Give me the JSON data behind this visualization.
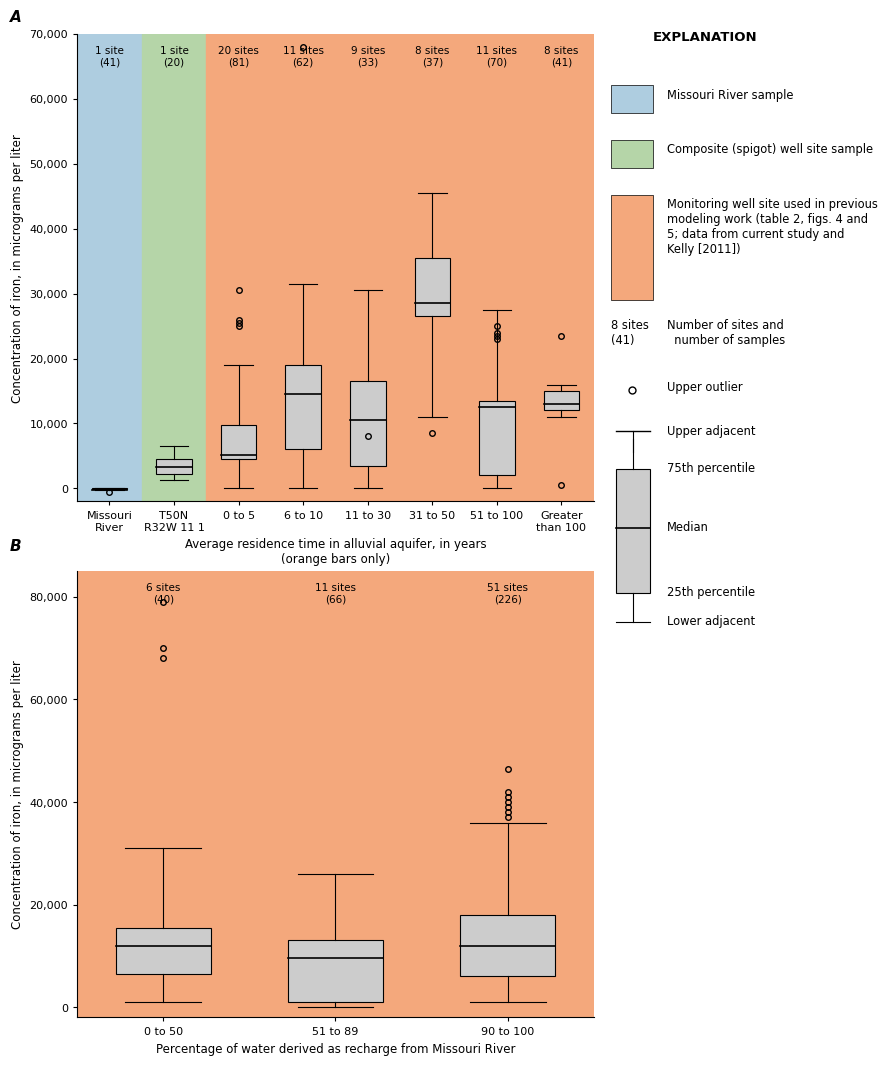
{
  "panel_A": {
    "categories": [
      "Missouri\nRiver",
      "T50N\nR32W 11 1",
      "0 to 5",
      "6 to 10",
      "11 to 30",
      "31 to 50",
      "51 to 100",
      "Greater\nthan 100"
    ],
    "bg_colors": [
      "#aecde0",
      "#b5d5a8",
      "#f4a87c",
      "#f4a87c",
      "#f4a87c",
      "#f4a87c",
      "#f4a87c",
      "#f4a87c"
    ],
    "labels": [
      "1 site\n(41)",
      "1 site\n(20)",
      "20 sites\n(81)",
      "11 sites\n(62)",
      "9 sites\n(33)",
      "8 sites\n(37)",
      "11 sites\n(70)",
      "8 sites\n(41)"
    ],
    "boxes": [
      {
        "q1": -100,
        "median": -200,
        "q3": 100,
        "lower": -200,
        "upper": 100,
        "outliers": [
          -500
        ]
      },
      {
        "q1": 2200,
        "median": 3300,
        "q3": 4500,
        "lower": 1300,
        "upper": 6500,
        "outliers": []
      },
      {
        "q1": 4500,
        "median": 5200,
        "q3": 9800,
        "lower": 0,
        "upper": 19000,
        "outliers": [
          25000,
          25500,
          26000,
          30500
        ]
      },
      {
        "q1": 6000,
        "median": 14500,
        "q3": 19000,
        "lower": 0,
        "upper": 31500,
        "outliers": [
          68000
        ]
      },
      {
        "q1": 3500,
        "median": 10500,
        "q3": 16500,
        "lower": 0,
        "upper": 30500,
        "outliers": [
          8000
        ]
      },
      {
        "q1": 26500,
        "median": 28500,
        "q3": 35500,
        "lower": 11000,
        "upper": 45500,
        "outliers": [
          8500
        ]
      },
      {
        "q1": 2000,
        "median": 12500,
        "q3": 13500,
        "lower": 0,
        "upper": 27500,
        "outliers": [
          23000,
          23500,
          24000,
          25000
        ]
      },
      {
        "q1": 12000,
        "median": 13000,
        "q3": 15000,
        "lower": 11000,
        "upper": 16000,
        "outliers": [
          500,
          23500
        ]
      }
    ],
    "ylim": [
      -2000,
      70000
    ],
    "yticks": [
      0,
      10000,
      20000,
      30000,
      40000,
      50000,
      60000,
      70000
    ],
    "ylabel": "Concentration of iron, in micrograms per liter",
    "xlabel": "Average residence time in alluvial aquifer, in years\n(orange bars only)",
    "title": "A"
  },
  "panel_B": {
    "categories": [
      "0 to 50",
      "51 to 89",
      "90 to 100"
    ],
    "bg_colors": [
      "#f4a87c",
      "#f4a87c",
      "#f4a87c"
    ],
    "bg_gaps": [
      true,
      false,
      true
    ],
    "labels": [
      "6 sites\n(40)",
      "11 sites\n(66)",
      "51 sites\n(226)"
    ],
    "boxes": [
      {
        "q1": 6500,
        "median": 12000,
        "q3": 15500,
        "lower": 1000,
        "upper": 31000,
        "outliers": [
          68000,
          79000,
          70000
        ]
      },
      {
        "q1": 1000,
        "median": 9500,
        "q3": 13000,
        "lower": 0,
        "upper": 26000,
        "outliers": []
      },
      {
        "q1": 6000,
        "median": 12000,
        "q3": 18000,
        "lower": 1000,
        "upper": 36000,
        "outliers": [
          46500,
          39000,
          40000,
          41000,
          42000,
          38000,
          37000
        ]
      }
    ],
    "ylim": [
      -2000,
      85000
    ],
    "yticks": [
      0,
      20000,
      40000,
      60000,
      80000
    ],
    "xlabel": "Percentage of water derived as recharge from Missouri River",
    "title": "B"
  },
  "legend": {
    "blue_color": "#aecde0",
    "green_color": "#b5d5a8",
    "orange_color": "#f4a87c",
    "box_color": "#c8c8c8",
    "title": "EXPLANATION",
    "blue_label": "Missouri River sample",
    "green_label": "Composite (spigot) well site sample",
    "orange_label": "Monitoring well site used in previous\nmodeling work (table 2, figs. 4 and\n5; data from current study and\nKelly [2011])",
    "sites_label": "Number of sites and\n  number of samples",
    "upper_outlier": "Upper outlier",
    "upper_adjacent": "Upper adjacent",
    "p75": "75th percentile",
    "median": "Median",
    "p25": "25th percentile",
    "lower_adjacent": "Lower adjacent"
  }
}
